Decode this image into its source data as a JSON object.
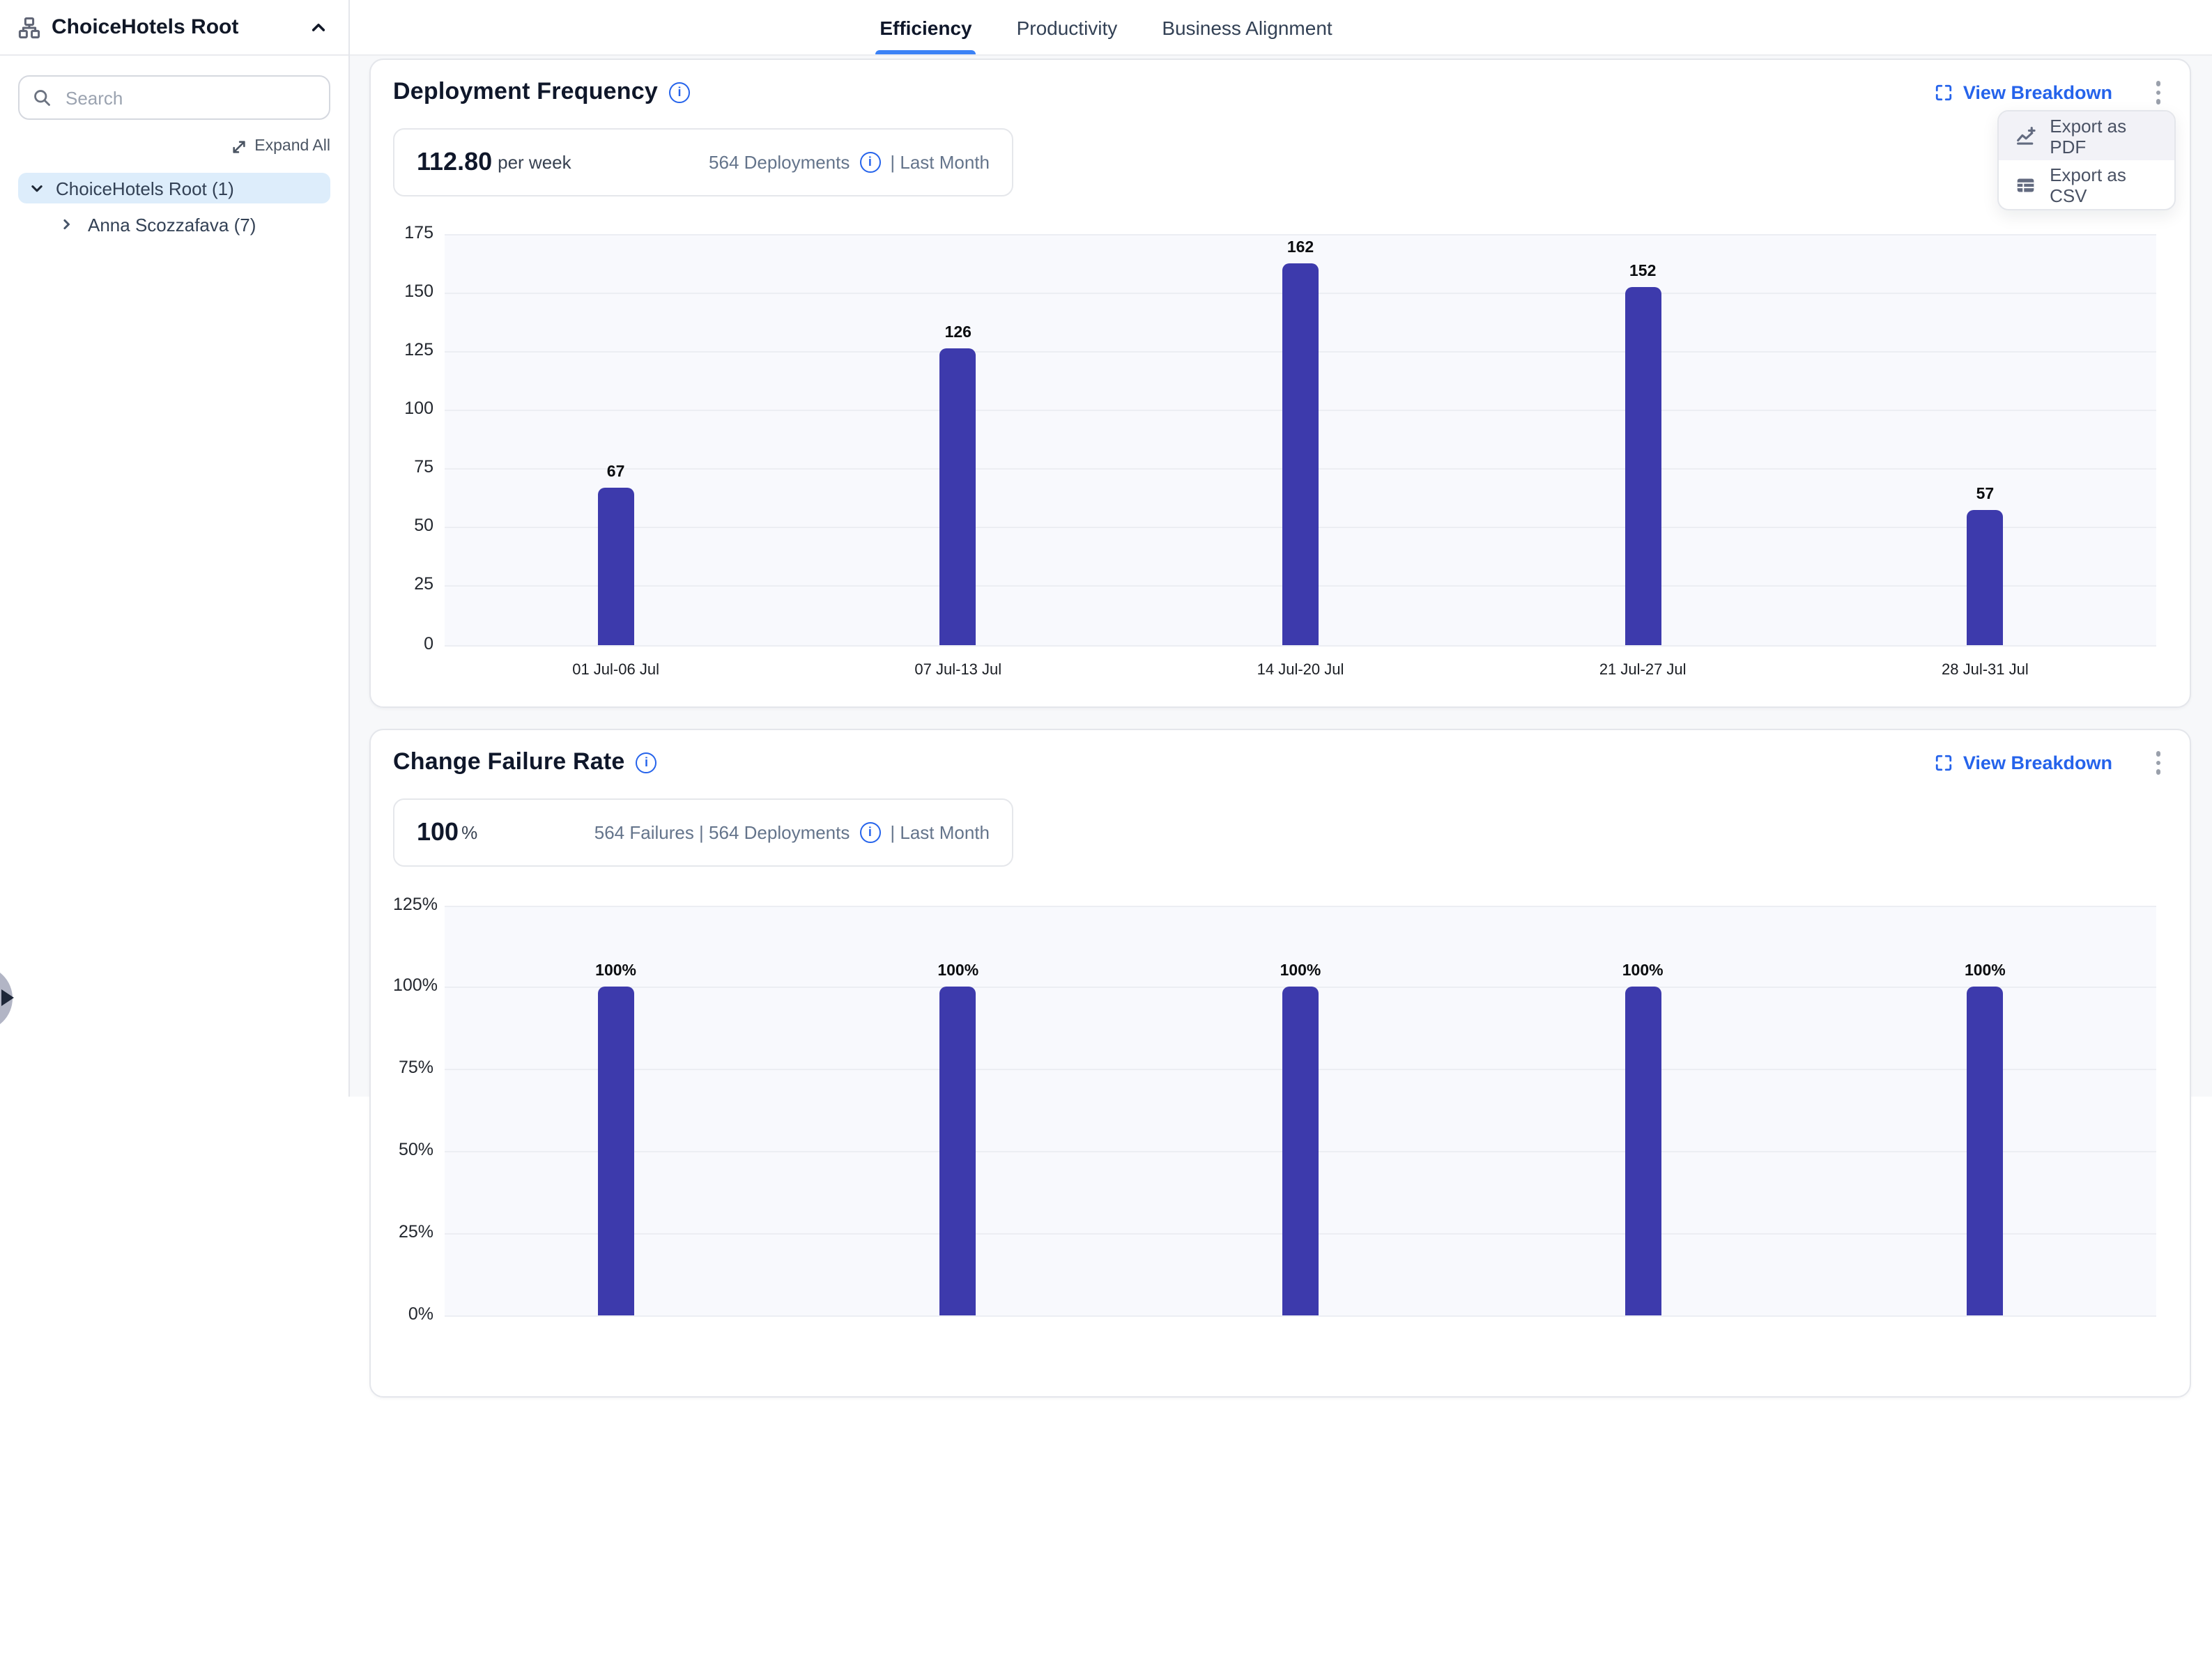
{
  "sidebar": {
    "icon": "sitemap-icon",
    "title": "ChoiceHotels Root",
    "search_placeholder": "Search",
    "expand_all_label": "Expand All",
    "tree": [
      {
        "label": "ChoiceHotels Root (1)",
        "expanded": true,
        "selected": true
      },
      {
        "label": "Anna Scozzafava (7)",
        "expanded": false,
        "selected": false
      }
    ]
  },
  "tabs": [
    {
      "label": "Efficiency",
      "active": true
    },
    {
      "label": "Productivity",
      "active": false
    },
    {
      "label": "Business Alignment",
      "active": false
    }
  ],
  "cards": [
    {
      "title": "Deployment Frequency",
      "stat_value": "112.80",
      "stat_unit": "per week",
      "meta_primary": "564 Deployments",
      "meta_secondary": "| Last Month",
      "view_breakdown_label": "View Breakdown"
    },
    {
      "title": "Change Failure Rate",
      "stat_value": "100",
      "stat_unit": "%",
      "meta_primary": "564 Failures | 564 Deployments",
      "meta_secondary": "| Last Month",
      "view_breakdown_label": "View Breakdown"
    }
  ],
  "export_menu": {
    "items": [
      {
        "label": "Export as PDF",
        "icon": "chart-line-plus-icon",
        "hovered": true
      },
      {
        "label": "Export as CSV",
        "icon": "table-icon",
        "hovered": false
      }
    ]
  },
  "chart_data": [
    {
      "type": "bar",
      "title": "Deployment Frequency",
      "categories": [
        "01 Jul-06 Jul",
        "07 Jul-13 Jul",
        "14 Jul-20 Jul",
        "21 Jul-27 Jul",
        "28 Jul-31 Jul"
      ],
      "values": [
        67,
        126,
        162,
        152,
        57
      ],
      "ylim": [
        0,
        175
      ],
      "ystep": 25,
      "unit_suffix": "",
      "bar_color": "#3d3aac",
      "grid": true,
      "show_x_labels": true,
      "legend": "none"
    },
    {
      "type": "bar",
      "title": "Change Failure Rate",
      "categories": [],
      "values": [
        100,
        100,
        100,
        100,
        100
      ],
      "ylim": [
        0,
        125
      ],
      "ystep": 25,
      "unit_suffix": "%",
      "bar_color": "#3d3aac",
      "grid": true,
      "show_x_labels": false,
      "legend": "none"
    }
  ],
  "colors": {
    "accent_blue": "#2563eb",
    "tab_underline": "#3b82f6",
    "bar_indigo": "#3d3aac",
    "selected_tree_bg": "#ddedfb",
    "plot_bg": "#f8f9fd"
  }
}
